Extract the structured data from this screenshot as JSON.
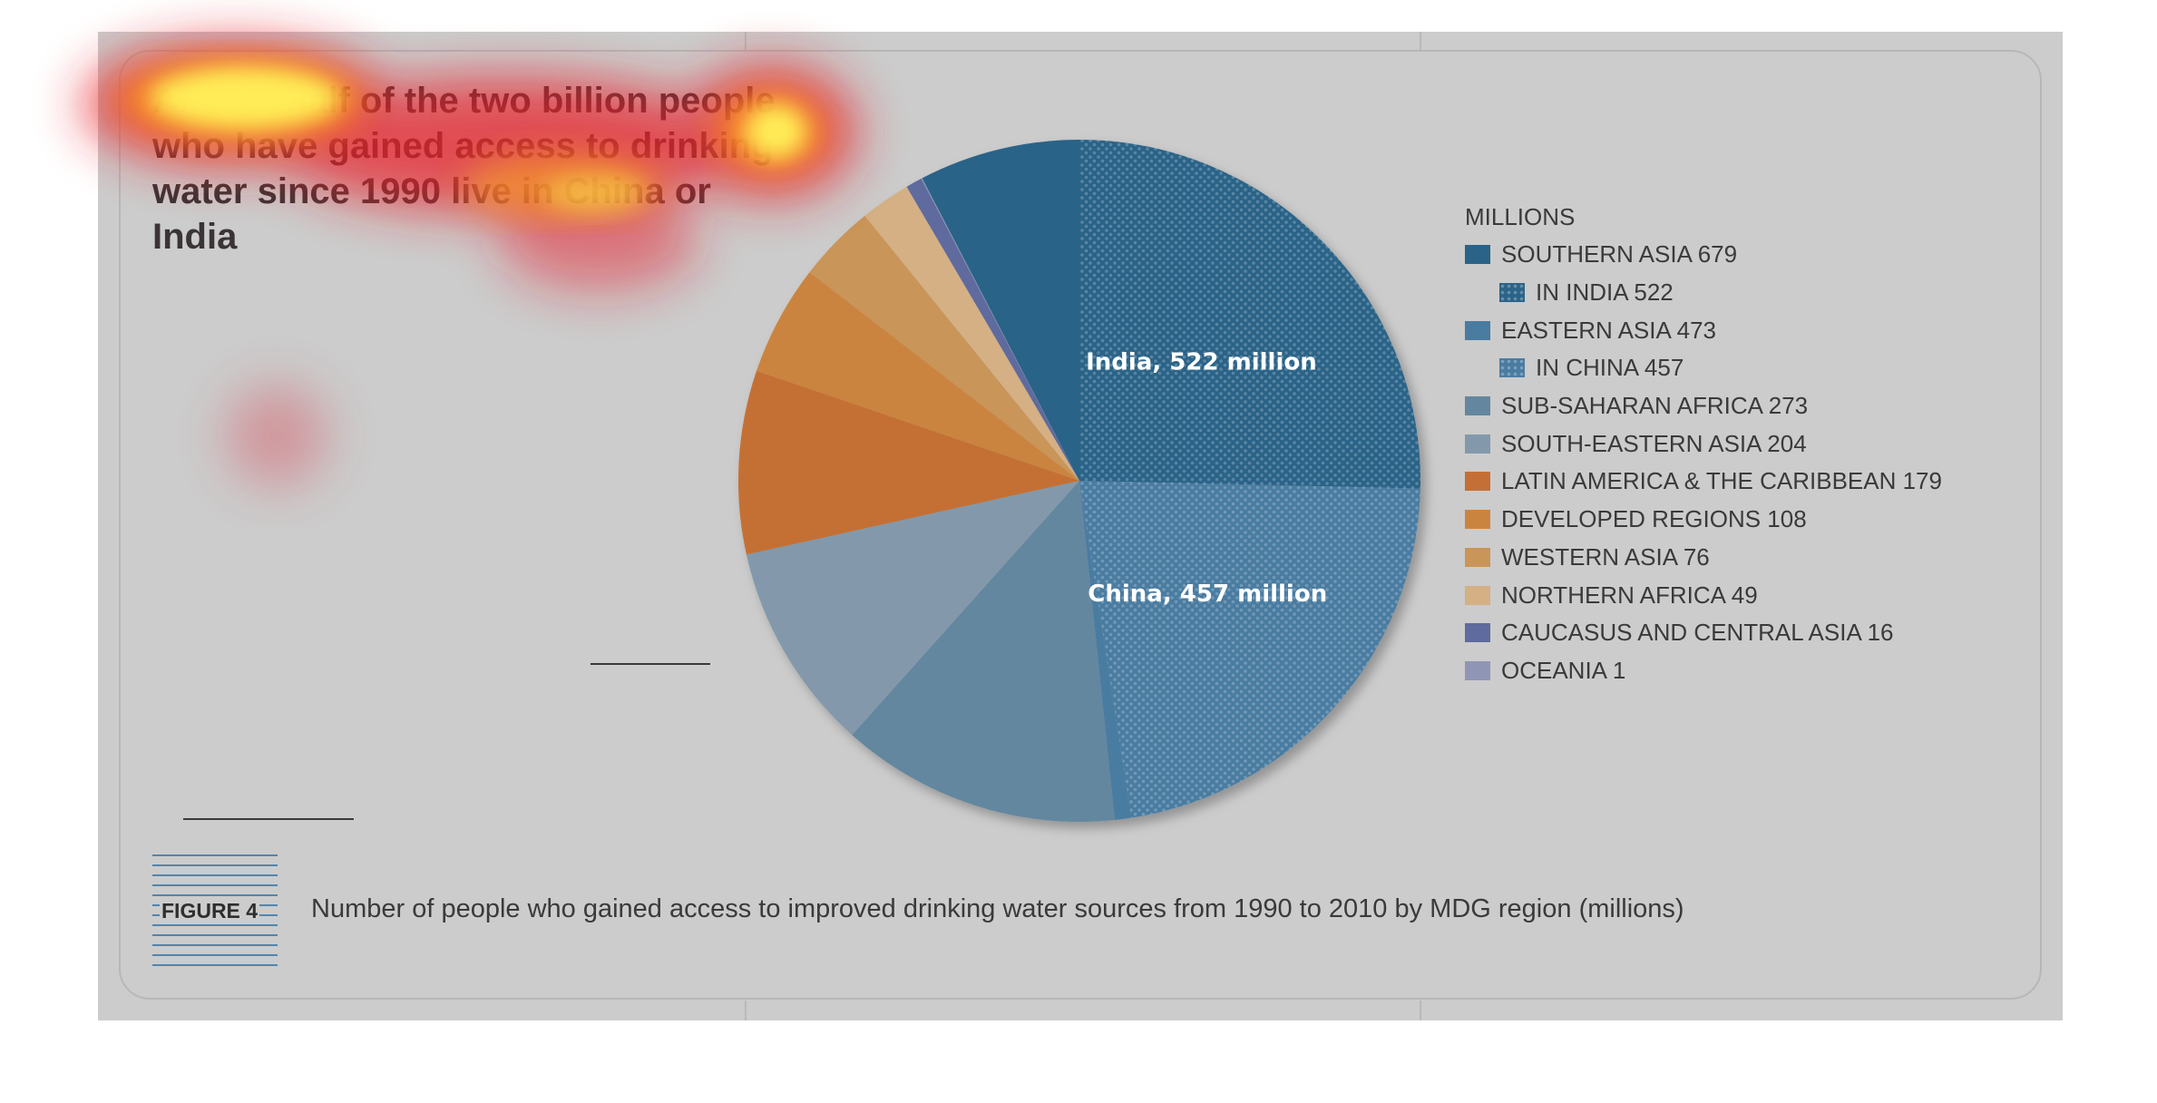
{
  "headline": "Almost half of the two billion people who have gained access to drinking water since 1990 live in China or India",
  "figure": {
    "tag": "FIGURE 4",
    "caption": "Number of people who gained access to improved drinking water sources from 1990 to 2010 by MDG region (millions)"
  },
  "chart_data": {
    "type": "pie",
    "title": "",
    "legend_title": "MILLIONS",
    "legend_placement": "right",
    "slices": [
      {
        "name": "IN INDIA",
        "legend": "IN INDIA 522",
        "value": 522,
        "color": "#2b6388",
        "pattern": "dots",
        "label": "India, 522 million"
      },
      {
        "name": "IN CHINA",
        "legend": "IN CHINA 457",
        "value": 457,
        "color": "#4a7ba1",
        "pattern": "dots",
        "label": "China, 457 million"
      },
      {
        "name": "EASTERN ASIA (excl. China)",
        "value": 16,
        "color": "#4a7ba1"
      },
      {
        "name": "SUB-SAHARAN AFRICA",
        "value": 273,
        "color": "#64879f"
      },
      {
        "name": "SOUTH-EASTERN ASIA",
        "value": 204,
        "color": "#8399ab"
      },
      {
        "name": "LATIN AMERICA & THE CARIBBEAN",
        "value": 179,
        "color": "#c46f35"
      },
      {
        "name": "DEVELOPED REGIONS",
        "value": 108,
        "color": "#cb843f"
      },
      {
        "name": "WESTERN ASIA",
        "value": 76,
        "color": "#c99558"
      },
      {
        "name": "NORTHERN AFRICA",
        "value": 49,
        "color": "#d4b084"
      },
      {
        "name": "CAUCASUS AND CENTRAL ASIA",
        "value": 16,
        "color": "#5f6b9e"
      },
      {
        "name": "OCEANIA",
        "value": 1,
        "color": "#8f95b5"
      },
      {
        "name": "SOUTHERN ASIA (excl. India)",
        "value": 157,
        "color": "#2b6388"
      }
    ],
    "legend": [
      {
        "text": "SOUTHERN ASIA 679",
        "color": "#2b6388",
        "sub": false,
        "dotted": false
      },
      {
        "text": "IN INDIA 522",
        "color": "#2b6388",
        "sub": true,
        "dotted": true
      },
      {
        "text": "EASTERN ASIA 473",
        "color": "#4a7ba1",
        "sub": false,
        "dotted": false
      },
      {
        "text": "IN CHINA 457",
        "color": "#4a7ba1",
        "sub": true,
        "dotted": true
      },
      {
        "text": "SUB-SAHARAN AFRICA 273",
        "color": "#64879f",
        "sub": false,
        "dotted": false
      },
      {
        "text": "SOUTH-EASTERN ASIA 204",
        "color": "#8399ab",
        "sub": false,
        "dotted": false
      },
      {
        "text": "LATIN AMERICA & THE CARIBBEAN 179",
        "color": "#c46f35",
        "sub": false,
        "dotted": false
      },
      {
        "text": "DEVELOPED REGIONS 108",
        "color": "#cb843f",
        "sub": false,
        "dotted": false
      },
      {
        "text": "WESTERN ASIA 76",
        "color": "#c99558",
        "sub": false,
        "dotted": false
      },
      {
        "text": "NORTHERN AFRICA 49",
        "color": "#d4b084",
        "sub": false,
        "dotted": false
      },
      {
        "text": "CAUCASUS AND CENTRAL ASIA 16",
        "color": "#5f6b9e",
        "sub": false,
        "dotted": false
      },
      {
        "text": "OCEANIA 1",
        "color": "#8f95b5",
        "sub": false,
        "dotted": false
      }
    ]
  }
}
